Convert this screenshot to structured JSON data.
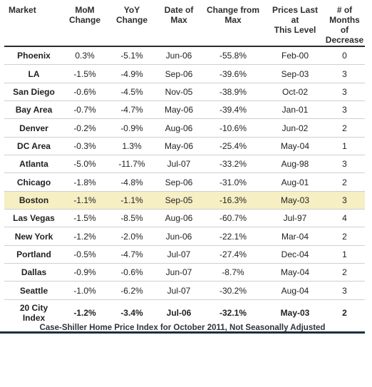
{
  "headers": {
    "market": "Market",
    "mom": [
      "MoM",
      "Change"
    ],
    "yoy": [
      "YoY",
      "Change"
    ],
    "date_of_max": [
      "Date of",
      "Max"
    ],
    "change_from_max": [
      "Change from",
      "Max"
    ],
    "prices_last": [
      "Prices Last",
      "at",
      "This Level"
    ],
    "months_decrease": [
      "# of Months",
      "of",
      "Decrease"
    ]
  },
  "rows": [
    {
      "market": "Phoenix",
      "mom": "0.3%",
      "yoy": "-5.1%",
      "date": "Jun-06",
      "change": "-55.8%",
      "prices": "Feb-00",
      "months": "0"
    },
    {
      "market": "LA",
      "mom": "-1.5%",
      "yoy": "-4.9%",
      "date": "Sep-06",
      "change": "-39.6%",
      "prices": "Sep-03",
      "months": "3"
    },
    {
      "market": "San Diego",
      "mom": "-0.6%",
      "yoy": "-4.5%",
      "date": "Nov-05",
      "change": "-38.9%",
      "prices": "Oct-02",
      "months": "3"
    },
    {
      "market": "Bay Area",
      "mom": "-0.7%",
      "yoy": "-4.7%",
      "date": "May-06",
      "change": "-39.4%",
      "prices": "Jan-01",
      "months": "3"
    },
    {
      "market": "Denver",
      "mom": "-0.2%",
      "yoy": "-0.9%",
      "date": "Aug-06",
      "change": "-10.6%",
      "prices": "Jun-02",
      "months": "2"
    },
    {
      "market": "DC Area",
      "mom": "-0.3%",
      "yoy": "1.3%",
      "date": "May-06",
      "change": "-25.4%",
      "prices": "May-04",
      "months": "1"
    },
    {
      "market": "Atlanta",
      "mom": "-5.0%",
      "yoy": "-11.7%",
      "date": "Jul-07",
      "change": "-33.2%",
      "prices": "Aug-98",
      "months": "3"
    },
    {
      "market": "Chicago",
      "mom": "-1.8%",
      "yoy": "-4.8%",
      "date": "Sep-06",
      "change": "-31.0%",
      "prices": "Aug-01",
      "months": "2"
    },
    {
      "market": "Boston",
      "mom": "-1.1%",
      "yoy": "-1.1%",
      "date": "Sep-05",
      "change": "-16.3%",
      "prices": "May-03",
      "months": "3"
    },
    {
      "market": "Las Vegas",
      "mom": "-1.5%",
      "yoy": "-8.5%",
      "date": "Aug-06",
      "change": "-60.7%",
      "prices": "Jul-97",
      "months": "4"
    },
    {
      "market": "New York",
      "mom": "-1.2%",
      "yoy": "-2.0%",
      "date": "Jun-06",
      "change": "-22.1%",
      "prices": "Mar-04",
      "months": "2"
    },
    {
      "market": "Portland",
      "mom": "-0.5%",
      "yoy": "-4.7%",
      "date": "Jul-07",
      "change": "-27.4%",
      "prices": "Dec-04",
      "months": "1"
    },
    {
      "market": "Dallas",
      "mom": "-0.9%",
      "yoy": "-0.6%",
      "date": "Jun-07",
      "change": "-8.7%",
      "prices": "May-04",
      "months": "2"
    },
    {
      "market": "Seattle",
      "mom": "-1.0%",
      "yoy": "-6.2%",
      "date": "Jul-07",
      "change": "-30.2%",
      "prices": "Aug-04",
      "months": "3"
    }
  ],
  "index_row": {
    "market": [
      "20 City",
      "Index"
    ],
    "mom": "-1.2%",
    "yoy": "-3.4%",
    "date": "Jul-06",
    "change": "-32.1%",
    "prices": "May-03",
    "months": "2"
  },
  "caption": "Case-Shiller Home Price Index for October 2011, Not Seasonally Adjusted",
  "colors": {
    "highlight_row": "#f6efc3",
    "caption_bar": "#1c2e44"
  }
}
